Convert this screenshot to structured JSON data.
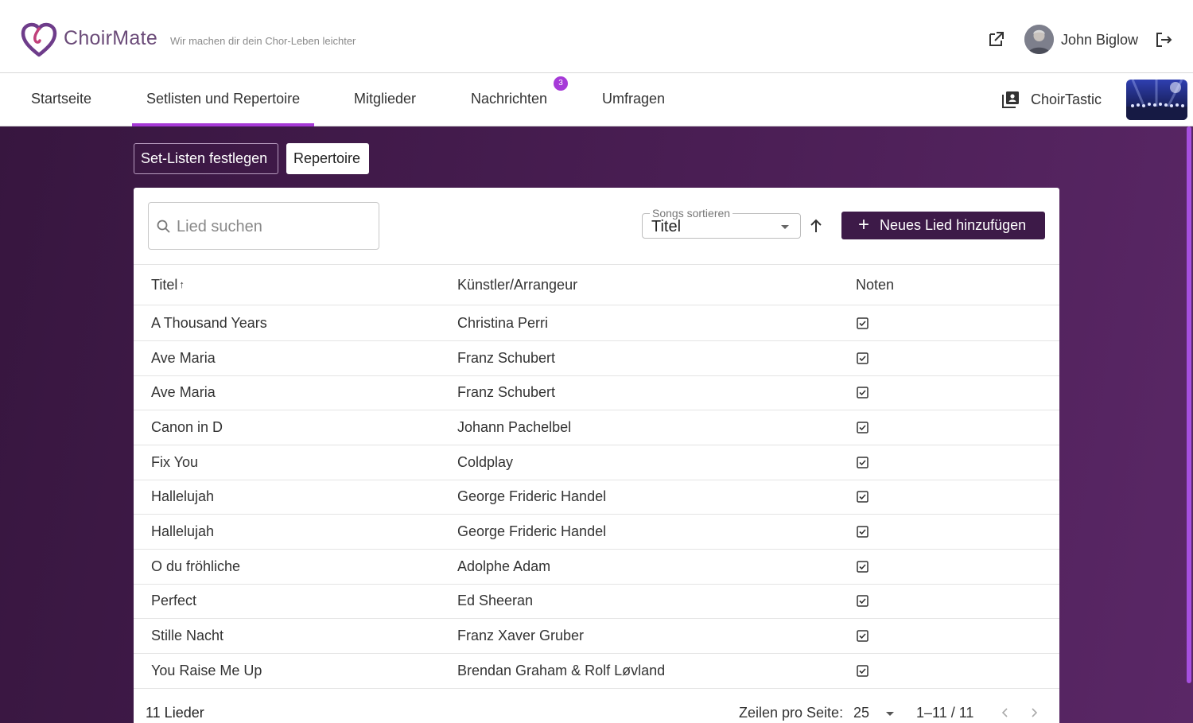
{
  "header": {
    "brand": "ChoirMate",
    "tagline": "Wir machen dir dein Chor-Leben leichter",
    "user_name": "John Biglow"
  },
  "nav": {
    "tabs": [
      {
        "label": "Startseite"
      },
      {
        "label": "Setlisten und Repertoire",
        "active": true
      },
      {
        "label": "Mitglieder"
      },
      {
        "label": "Nachrichten",
        "badge": "3"
      },
      {
        "label": "Umfragen"
      }
    ],
    "choir_name": "ChoirTastic"
  },
  "subnav": {
    "setlists_label": "Set-Listen festlegen",
    "repertoire_label": "Repertoire"
  },
  "toolbar": {
    "search_placeholder": "Lied suchen",
    "search_value": "",
    "sort_label": "Songs sortieren",
    "sort_value": "Titel",
    "add_label": "Neues Lied hinzufügen"
  },
  "table": {
    "headers": {
      "title": "Titel",
      "artist": "Künstler/Arrangeur",
      "notes": "Noten"
    },
    "rows": [
      {
        "title": "A Thousand Years",
        "artist": "Christina Perri",
        "notes": true
      },
      {
        "title": "Ave Maria",
        "artist": "Franz Schubert",
        "notes": true
      },
      {
        "title": "Ave Maria",
        "artist": "Franz Schubert",
        "notes": true
      },
      {
        "title": "Canon in D",
        "artist": "Johann Pachelbel",
        "notes": true
      },
      {
        "title": "Fix You",
        "artist": "Coldplay",
        "notes": true
      },
      {
        "title": "Hallelujah",
        "artist": "George Frideric Handel",
        "notes": true
      },
      {
        "title": "Hallelujah",
        "artist": "George Frideric Handel",
        "notes": true
      },
      {
        "title": "O du fröhliche",
        "artist": "Adolphe Adam",
        "notes": true
      },
      {
        "title": "Perfect",
        "artist": "Ed Sheeran",
        "notes": true
      },
      {
        "title": "Stille Nacht",
        "artist": "Franz Xaver Gruber",
        "notes": true
      },
      {
        "title": "You Raise Me Up",
        "artist": "Brendan Graham & Rolf Løvland",
        "notes": true
      }
    ]
  },
  "footer": {
    "count": "11 Lieder",
    "rows_per_page_label": "Zeilen pro Seite:",
    "rows_per_page": "25",
    "range": "1–11 / 11"
  },
  "colors": {
    "accent": "#a538d6",
    "primary_dark": "#3d1a48",
    "background": "#4a1e54"
  }
}
